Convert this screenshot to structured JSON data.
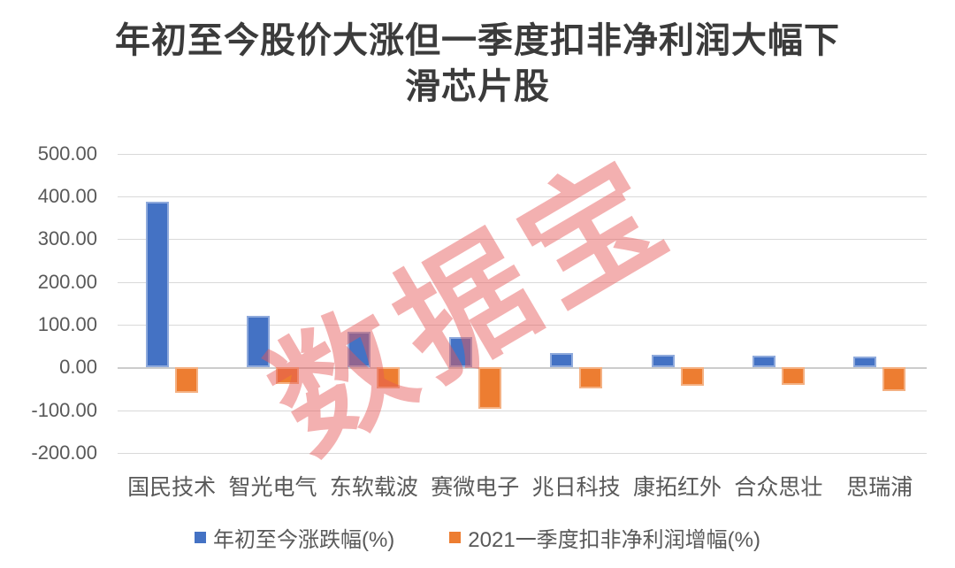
{
  "title": {
    "line1": "年初至今股价大涨但一季度扣非净利润大幅下",
    "line2": "滑芯片股"
  },
  "watermark": "数据宝",
  "colors": {
    "series_blue": "#4472C4",
    "series_orange": "#ED7D31",
    "watermark_red": "#E65858",
    "axis_text_gray": "#595959",
    "gridline_gray": "#D9D9D9",
    "title_gray": "#3B3B3B"
  },
  "chart_data": {
    "type": "bar",
    "title": "年初至今股价大涨但一季度扣非净利润大幅下滑芯片股",
    "categories": [
      "国民技术",
      "智光电气",
      "东软载波",
      "赛微电子",
      "兆日科技",
      "康拓红外",
      "合众思壮",
      "思瑞浦"
    ],
    "series": [
      {
        "name": "年初至今涨跌幅(%)",
        "color": "#4472C4",
        "values": [
          388,
          120,
          83,
          71,
          33,
          30,
          28,
          26
        ]
      },
      {
        "name": "2021一季度扣非净利润增幅(%)",
        "color": "#ED7D31",
        "values": [
          -60,
          -38,
          -50,
          -96,
          -48,
          -43,
          -41,
          -56
        ]
      }
    ],
    "xlabel": "",
    "ylabel": "",
    "ylim": [
      -200,
      500
    ],
    "ytick_step": 100,
    "ytick_labels": [
      "500.00",
      "400.00",
      "300.00",
      "200.00",
      "100.00",
      "0.00",
      "-100.00",
      "-200.00"
    ],
    "grid": true,
    "legend_position": "bottom"
  }
}
